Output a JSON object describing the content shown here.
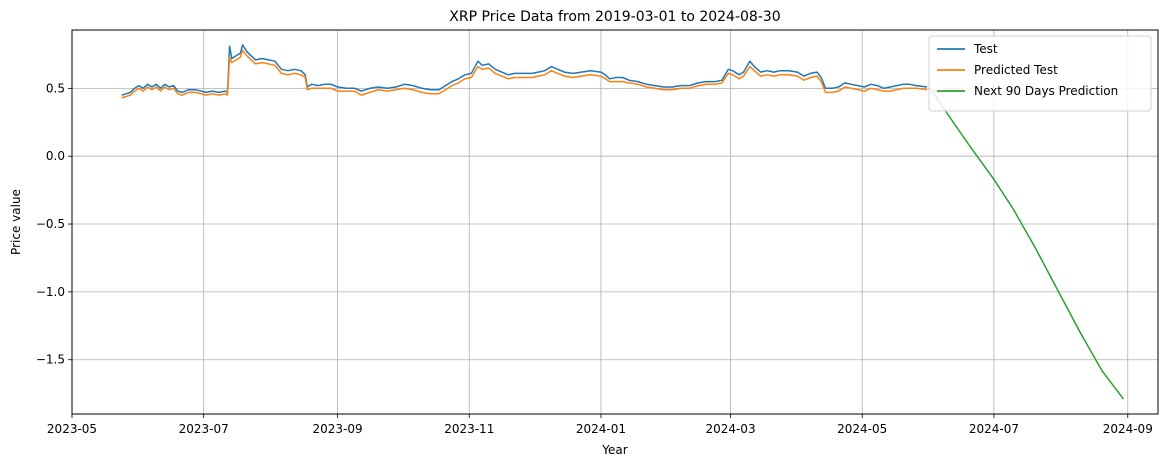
{
  "chart_data": {
    "type": "line",
    "title": "XRP Price Data from 2019-03-01 to 2024-08-30",
    "xlabel": "Year",
    "ylabel": "Price value",
    "xlim": [
      "2023-05-01",
      "2024-09-15"
    ],
    "ylim": [
      -1.9,
      0.93
    ],
    "x_ticks": [
      "2023-05",
      "2023-07",
      "2023-09",
      "2023-11",
      "2024-01",
      "2024-03",
      "2024-05",
      "2024-07",
      "2024-09"
    ],
    "y_ticks": [
      0.5,
      0.0,
      -0.5,
      -1.0,
      -1.5
    ],
    "grid": true,
    "legend_position": "top-right",
    "series": [
      {
        "name": "Test",
        "color": "#1f77b4",
        "points": [
          [
            "2023-05-24",
            0.45
          ],
          [
            "2023-05-26",
            0.46
          ],
          [
            "2023-05-28",
            0.47
          ],
          [
            "2023-05-30",
            0.5
          ],
          [
            "2023-06-01",
            0.52
          ],
          [
            "2023-06-03",
            0.5
          ],
          [
            "2023-06-05",
            0.53
          ],
          [
            "2023-06-07",
            0.51
          ],
          [
            "2023-06-09",
            0.53
          ],
          [
            "2023-06-11",
            0.5
          ],
          [
            "2023-06-13",
            0.53
          ],
          [
            "2023-06-15",
            0.51
          ],
          [
            "2023-06-17",
            0.52
          ],
          [
            "2023-06-19",
            0.48
          ],
          [
            "2023-06-21",
            0.47
          ],
          [
            "2023-06-24",
            0.49
          ],
          [
            "2023-06-27",
            0.49
          ],
          [
            "2023-06-30",
            0.48
          ],
          [
            "2023-07-02",
            0.47
          ],
          [
            "2023-07-05",
            0.48
          ],
          [
            "2023-07-08",
            0.47
          ],
          [
            "2023-07-11",
            0.48
          ],
          [
            "2023-07-12",
            0.47
          ],
          [
            "2023-07-13",
            0.81
          ],
          [
            "2023-07-14",
            0.72
          ],
          [
            "2023-07-16",
            0.74
          ],
          [
            "2023-07-18",
            0.76
          ],
          [
            "2023-07-19",
            0.82
          ],
          [
            "2023-07-21",
            0.77
          ],
          [
            "2023-07-23",
            0.74
          ],
          [
            "2023-07-25",
            0.71
          ],
          [
            "2023-07-28",
            0.72
          ],
          [
            "2023-07-31",
            0.71
          ],
          [
            "2023-08-03",
            0.7
          ],
          [
            "2023-08-06",
            0.64
          ],
          [
            "2023-08-09",
            0.63
          ],
          [
            "2023-08-12",
            0.64
          ],
          [
            "2023-08-15",
            0.63
          ],
          [
            "2023-08-17",
            0.6
          ],
          [
            "2023-08-18",
            0.51
          ],
          [
            "2023-08-20",
            0.53
          ],
          [
            "2023-08-23",
            0.52
          ],
          [
            "2023-08-26",
            0.53
          ],
          [
            "2023-08-29",
            0.53
          ],
          [
            "2023-09-01",
            0.51
          ],
          [
            "2023-09-05",
            0.5
          ],
          [
            "2023-09-09",
            0.5
          ],
          [
            "2023-09-12",
            0.48
          ],
          [
            "2023-09-16",
            0.5
          ],
          [
            "2023-09-20",
            0.51
          ],
          [
            "2023-09-24",
            0.5
          ],
          [
            "2023-09-28",
            0.51
          ],
          [
            "2023-10-02",
            0.53
          ],
          [
            "2023-10-06",
            0.52
          ],
          [
            "2023-10-10",
            0.5
          ],
          [
            "2023-10-14",
            0.49
          ],
          [
            "2023-10-18",
            0.49
          ],
          [
            "2023-10-21",
            0.52
          ],
          [
            "2023-10-24",
            0.55
          ],
          [
            "2023-10-27",
            0.57
          ],
          [
            "2023-10-30",
            0.6
          ],
          [
            "2023-11-02",
            0.61
          ],
          [
            "2023-11-05",
            0.7
          ],
          [
            "2023-11-07",
            0.67
          ],
          [
            "2023-11-10",
            0.68
          ],
          [
            "2023-11-13",
            0.64
          ],
          [
            "2023-11-16",
            0.62
          ],
          [
            "2023-11-19",
            0.6
          ],
          [
            "2023-11-22",
            0.61
          ],
          [
            "2023-11-26",
            0.61
          ],
          [
            "2023-11-30",
            0.61
          ],
          [
            "2023-12-03",
            0.62
          ],
          [
            "2023-12-06",
            0.63
          ],
          [
            "2023-12-09",
            0.66
          ],
          [
            "2023-12-12",
            0.64
          ],
          [
            "2023-12-15",
            0.62
          ],
          [
            "2023-12-19",
            0.61
          ],
          [
            "2023-12-23",
            0.62
          ],
          [
            "2023-12-27",
            0.63
          ],
          [
            "2024-01-01",
            0.62
          ],
          [
            "2024-01-03",
            0.6
          ],
          [
            "2024-01-05",
            0.57
          ],
          [
            "2024-01-08",
            0.58
          ],
          [
            "2024-01-11",
            0.58
          ],
          [
            "2024-01-14",
            0.56
          ],
          [
            "2024-01-18",
            0.55
          ],
          [
            "2024-01-22",
            0.53
          ],
          [
            "2024-01-26",
            0.52
          ],
          [
            "2024-01-30",
            0.51
          ],
          [
            "2024-02-03",
            0.51
          ],
          [
            "2024-02-07",
            0.52
          ],
          [
            "2024-02-11",
            0.52
          ],
          [
            "2024-02-15",
            0.54
          ],
          [
            "2024-02-19",
            0.55
          ],
          [
            "2024-02-23",
            0.55
          ],
          [
            "2024-02-26",
            0.56
          ],
          [
            "2024-02-29",
            0.64
          ],
          [
            "2024-03-02",
            0.63
          ],
          [
            "2024-03-05",
            0.6
          ],
          [
            "2024-03-07",
            0.62
          ],
          [
            "2024-03-10",
            0.7
          ],
          [
            "2024-03-12",
            0.66
          ],
          [
            "2024-03-15",
            0.62
          ],
          [
            "2024-03-18",
            0.63
          ],
          [
            "2024-03-21",
            0.62
          ],
          [
            "2024-03-24",
            0.63
          ],
          [
            "2024-03-28",
            0.63
          ],
          [
            "2024-04-01",
            0.62
          ],
          [
            "2024-04-04",
            0.59
          ],
          [
            "2024-04-07",
            0.61
          ],
          [
            "2024-04-10",
            0.62
          ],
          [
            "2024-04-12",
            0.58
          ],
          [
            "2024-04-14",
            0.5
          ],
          [
            "2024-04-17",
            0.5
          ],
          [
            "2024-04-20",
            0.51
          ],
          [
            "2024-04-23",
            0.54
          ],
          [
            "2024-04-26",
            0.53
          ],
          [
            "2024-04-29",
            0.52
          ],
          [
            "2024-05-02",
            0.51
          ],
          [
            "2024-05-05",
            0.53
          ],
          [
            "2024-05-08",
            0.52
          ],
          [
            "2024-05-11",
            0.5
          ],
          [
            "2024-05-14",
            0.51
          ],
          [
            "2024-05-17",
            0.52
          ],
          [
            "2024-05-20",
            0.53
          ],
          [
            "2024-05-23",
            0.53
          ],
          [
            "2024-05-26",
            0.52
          ],
          [
            "2024-05-31",
            0.51
          ]
        ]
      },
      {
        "name": "Predicted Test",
        "color": "#ff7f0e",
        "points": [
          [
            "2023-05-24",
            0.43
          ],
          [
            "2023-05-26",
            0.44
          ],
          [
            "2023-05-28",
            0.45
          ],
          [
            "2023-05-30",
            0.48
          ],
          [
            "2023-06-01",
            0.5
          ],
          [
            "2023-06-03",
            0.48
          ],
          [
            "2023-06-05",
            0.51
          ],
          [
            "2023-06-07",
            0.49
          ],
          [
            "2023-06-09",
            0.51
          ],
          [
            "2023-06-11",
            0.48
          ],
          [
            "2023-06-13",
            0.51
          ],
          [
            "2023-06-15",
            0.49
          ],
          [
            "2023-06-17",
            0.5
          ],
          [
            "2023-06-19",
            0.46
          ],
          [
            "2023-06-21",
            0.45
          ],
          [
            "2023-06-24",
            0.47
          ],
          [
            "2023-06-27",
            0.47
          ],
          [
            "2023-06-30",
            0.46
          ],
          [
            "2023-07-02",
            0.45
          ],
          [
            "2023-07-05",
            0.46
          ],
          [
            "2023-07-08",
            0.45
          ],
          [
            "2023-07-11",
            0.46
          ],
          [
            "2023-07-12",
            0.45
          ],
          [
            "2023-07-13",
            0.73
          ],
          [
            "2023-07-14",
            0.69
          ],
          [
            "2023-07-16",
            0.71
          ],
          [
            "2023-07-18",
            0.73
          ],
          [
            "2023-07-19",
            0.78
          ],
          [
            "2023-07-21",
            0.74
          ],
          [
            "2023-07-23",
            0.71
          ],
          [
            "2023-07-25",
            0.68
          ],
          [
            "2023-07-28",
            0.69
          ],
          [
            "2023-07-31",
            0.68
          ],
          [
            "2023-08-03",
            0.67
          ],
          [
            "2023-08-06",
            0.61
          ],
          [
            "2023-08-09",
            0.6
          ],
          [
            "2023-08-12",
            0.61
          ],
          [
            "2023-08-15",
            0.6
          ],
          [
            "2023-08-17",
            0.58
          ],
          [
            "2023-08-18",
            0.49
          ],
          [
            "2023-08-20",
            0.5
          ],
          [
            "2023-08-23",
            0.5
          ],
          [
            "2023-08-26",
            0.5
          ],
          [
            "2023-08-29",
            0.5
          ],
          [
            "2023-09-01",
            0.48
          ],
          [
            "2023-09-05",
            0.48
          ],
          [
            "2023-09-09",
            0.48
          ],
          [
            "2023-09-12",
            0.45
          ],
          [
            "2023-09-16",
            0.47
          ],
          [
            "2023-09-20",
            0.49
          ],
          [
            "2023-09-24",
            0.48
          ],
          [
            "2023-09-28",
            0.49
          ],
          [
            "2023-10-02",
            0.5
          ],
          [
            "2023-10-06",
            0.49
          ],
          [
            "2023-10-10",
            0.47
          ],
          [
            "2023-10-14",
            0.46
          ],
          [
            "2023-10-18",
            0.46
          ],
          [
            "2023-10-21",
            0.49
          ],
          [
            "2023-10-24",
            0.52
          ],
          [
            "2023-10-27",
            0.54
          ],
          [
            "2023-10-30",
            0.57
          ],
          [
            "2023-11-02",
            0.58
          ],
          [
            "2023-11-05",
            0.66
          ],
          [
            "2023-11-07",
            0.64
          ],
          [
            "2023-11-10",
            0.65
          ],
          [
            "2023-11-13",
            0.61
          ],
          [
            "2023-11-16",
            0.59
          ],
          [
            "2023-11-19",
            0.57
          ],
          [
            "2023-11-22",
            0.58
          ],
          [
            "2023-11-26",
            0.58
          ],
          [
            "2023-11-30",
            0.58
          ],
          [
            "2023-12-03",
            0.59
          ],
          [
            "2023-12-06",
            0.6
          ],
          [
            "2023-12-09",
            0.63
          ],
          [
            "2023-12-12",
            0.61
          ],
          [
            "2023-12-15",
            0.59
          ],
          [
            "2023-12-19",
            0.58
          ],
          [
            "2023-12-23",
            0.59
          ],
          [
            "2023-12-27",
            0.6
          ],
          [
            "2024-01-01",
            0.59
          ],
          [
            "2024-01-03",
            0.57
          ],
          [
            "2024-01-05",
            0.55
          ],
          [
            "2024-01-08",
            0.55
          ],
          [
            "2024-01-11",
            0.55
          ],
          [
            "2024-01-14",
            0.54
          ],
          [
            "2024-01-18",
            0.53
          ],
          [
            "2024-01-22",
            0.51
          ],
          [
            "2024-01-26",
            0.5
          ],
          [
            "2024-01-30",
            0.49
          ],
          [
            "2024-02-03",
            0.49
          ],
          [
            "2024-02-07",
            0.5
          ],
          [
            "2024-02-11",
            0.5
          ],
          [
            "2024-02-15",
            0.52
          ],
          [
            "2024-02-19",
            0.53
          ],
          [
            "2024-02-23",
            0.53
          ],
          [
            "2024-02-26",
            0.54
          ],
          [
            "2024-02-29",
            0.61
          ],
          [
            "2024-03-02",
            0.6
          ],
          [
            "2024-03-05",
            0.57
          ],
          [
            "2024-03-07",
            0.59
          ],
          [
            "2024-03-10",
            0.66
          ],
          [
            "2024-03-12",
            0.63
          ],
          [
            "2024-03-15",
            0.59
          ],
          [
            "2024-03-18",
            0.6
          ],
          [
            "2024-03-21",
            0.59
          ],
          [
            "2024-03-24",
            0.6
          ],
          [
            "2024-03-28",
            0.6
          ],
          [
            "2024-04-01",
            0.59
          ],
          [
            "2024-04-04",
            0.56
          ],
          [
            "2024-04-07",
            0.58
          ],
          [
            "2024-04-10",
            0.59
          ],
          [
            "2024-04-12",
            0.55
          ],
          [
            "2024-04-14",
            0.47
          ],
          [
            "2024-04-17",
            0.47
          ],
          [
            "2024-04-20",
            0.48
          ],
          [
            "2024-04-23",
            0.51
          ],
          [
            "2024-04-26",
            0.5
          ],
          [
            "2024-04-29",
            0.49
          ],
          [
            "2024-05-02",
            0.48
          ],
          [
            "2024-05-05",
            0.5
          ],
          [
            "2024-05-08",
            0.49
          ],
          [
            "2024-05-11",
            0.48
          ],
          [
            "2024-05-14",
            0.48
          ],
          [
            "2024-05-17",
            0.49
          ],
          [
            "2024-05-20",
            0.5
          ],
          [
            "2024-05-23",
            0.5
          ],
          [
            "2024-05-26",
            0.5
          ],
          [
            "2024-05-31",
            0.49
          ]
        ]
      },
      {
        "name": "Next 90 Days Prediction",
        "color": "#2ca02c",
        "points": [
          [
            "2024-06-01",
            0.51
          ],
          [
            "2024-06-10",
            0.3
          ],
          [
            "2024-06-20",
            0.07
          ],
          [
            "2024-07-01",
            -0.17
          ],
          [
            "2024-07-10",
            -0.39
          ],
          [
            "2024-07-20",
            -0.67
          ],
          [
            "2024-08-01",
            -1.03
          ],
          [
            "2024-08-10",
            -1.3
          ],
          [
            "2024-08-20",
            -1.58
          ],
          [
            "2024-08-30",
            -1.79
          ]
        ]
      }
    ]
  }
}
